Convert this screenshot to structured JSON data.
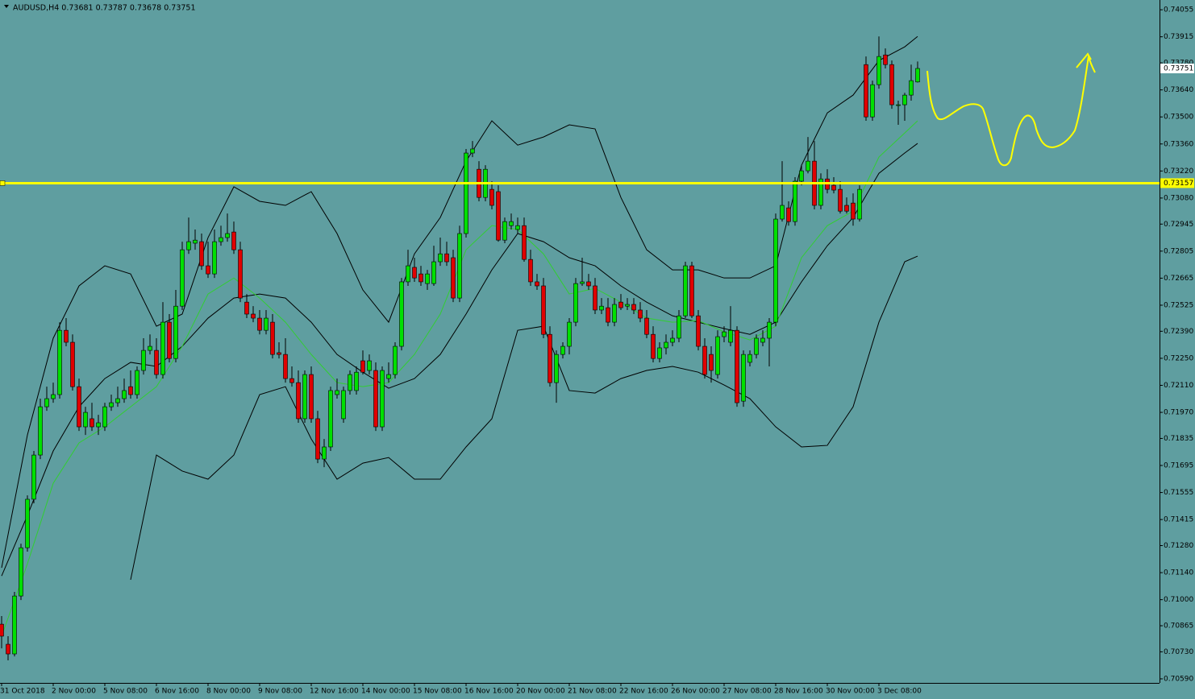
{
  "chart_data": {
    "type": "candlestick",
    "title": "AUDUSD,H4  0.73681 0.73787 0.73678 0.73751",
    "categories": [
      "31 Oct 2018",
      null,
      null,
      null,
      null,
      null,
      null,
      null,
      "2 Nov 00:00",
      null,
      null,
      null,
      null,
      null,
      null,
      null,
      "5 Nov 08:00",
      null,
      null,
      null,
      null,
      null,
      null,
      null,
      "6 Nov 16:00",
      null,
      null,
      null,
      null,
      null,
      null,
      null,
      "8 Nov 00:00",
      null,
      null,
      null,
      null,
      null,
      null,
      null,
      "9 Nov 08:00",
      null,
      null,
      null,
      null,
      null,
      null,
      null,
      "12 Nov 16:00",
      null,
      null,
      null,
      null,
      null,
      null,
      null,
      "14 Nov 00:00",
      null,
      null,
      null,
      null,
      null,
      null,
      null,
      "15 Nov 08:00",
      null,
      null,
      null,
      null,
      null,
      null,
      null,
      "16 Nov 16:00",
      null,
      null,
      null,
      null,
      null,
      null,
      null,
      "20 Nov 00:00",
      null,
      null,
      null,
      null,
      null,
      null,
      null,
      "21 Nov 08:00",
      null,
      null,
      null,
      null,
      null,
      null,
      null,
      "22 Nov 16:00",
      null,
      null,
      null,
      null,
      null,
      null,
      null,
      "26 Nov 00:00",
      null,
      null,
      null,
      null,
      null,
      null,
      null,
      "27 Nov 08:00",
      null,
      null,
      null,
      null,
      null,
      null,
      null,
      "28 Nov 16:00",
      null,
      null,
      null,
      null,
      null,
      null,
      null,
      "30 Nov 00:00",
      null,
      null,
      null,
      null,
      null,
      null,
      null,
      "3 Dec 08:00",
      null,
      null,
      null,
      null,
      null,
      null
    ],
    "open": [
      0.70873,
      0.70769,
      0.70719,
      0.71019,
      0.71269,
      0.7152,
      0.71749,
      0.71999,
      0.72041,
      0.72062,
      0.72395,
      0.72333,
      0.72103,
      0.71895,
      0.71937,
      0.71895,
      0.71895,
      0.71999,
      0.7202,
      0.72041,
      0.72103,
      0.72062,
      0.72187,
      0.72291,
      0.72291,
      0.72166,
      0.72437,
      0.72249,
      0.7252,
      0.72812,
      0.72846,
      0.72854,
      0.72729,
      0.72687,
      0.72854,
      0.72875,
      0.72904,
      0.72812,
      0.72541,
      0.72479,
      0.72458,
      0.72395,
      0.72437,
      0.72279,
      0.7227,
      0.72145,
      0.72124,
      0.71937,
      0.72166,
      0.71937,
      0.71728,
      0.71791,
      0.72062,
      0.71937,
      0.72083,
      0.72083,
      0.72237,
      0.72187,
      0.72187,
      0.71895,
      0.72145,
      0.72166,
      0.72312,
      0.72646,
      0.72721,
      0.72687,
      0.72637,
      0.72637,
      0.7275,
      0.72791,
      0.72771,
      0.72562,
      0.72896,
      0.73313,
      0.73229,
      0.73083,
      0.73125,
      0.73113,
      0.72862,
      0.72937,
      0.72917,
      0.72937,
      0.72762,
      0.72646,
      0.72625,
      0.72374,
      0.72124,
      0.7227,
      0.72312,
      0.72437,
      0.72637,
      0.72646,
      0.72625,
      0.725,
      0.72512,
      0.72437,
      0.72541,
      0.7252,
      0.72529,
      0.725,
      0.72458,
      0.72374,
      0.72249,
      0.72304,
      0.72333,
      0.72354,
      0.7247,
      0.72729,
      0.7247,
      0.72312,
      0.7227,
      0.72166,
      0.72362,
      0.72333,
      0.72395,
      0.72028,
      0.72229,
      0.7227,
      0.72333,
      0.72354,
      0.72437,
      0.72971,
      0.73029,
      0.72958,
      0.73167,
      0.73221,
      0.73271,
      0.73042,
      0.73179,
      0.73146,
      0.73125,
      0.73042,
      0.73054,
      0.72971,
      0.73771,
      0.735,
      0.73667,
      0.73821,
      0.73771,
      0.73563,
      0.73563,
      0.73613,
      0.73681
    ],
    "high": [
      0.70915,
      0.70811,
      0.7104,
      0.7129,
      0.7154,
      0.7177,
      0.72041,
      0.72103,
      0.72124,
      0.72437,
      0.72458,
      0.72374,
      0.72145,
      0.71999,
      0.7202,
      0.71957,
      0.7202,
      0.72062,
      0.72103,
      0.72145,
      0.72187,
      0.72208,
      0.72354,
      0.72374,
      0.72354,
      0.72541,
      0.72479,
      0.72604,
      0.72854,
      0.72979,
      0.72917,
      0.72896,
      0.72854,
      0.72917,
      0.72937,
      0.73,
      0.72958,
      0.72854,
      0.72583,
      0.7252,
      0.725,
      0.725,
      0.72479,
      0.72333,
      0.72354,
      0.72208,
      0.72187,
      0.72187,
      0.72208,
      0.71978,
      0.71832,
      0.72103,
      0.72145,
      0.72103,
      0.72187,
      0.72208,
      0.72291,
      0.7227,
      0.72229,
      0.72208,
      0.72229,
      0.72333,
      0.72666,
      0.72812,
      0.72771,
      0.72729,
      0.72708,
      0.72833,
      0.72875,
      0.72854,
      0.72812,
      0.72937,
      0.73334,
      0.73375,
      0.73271,
      0.7325,
      0.73167,
      0.73146,
      0.72979,
      0.73,
      0.72979,
      0.72979,
      0.72812,
      0.72687,
      0.72666,
      0.72416,
      0.72291,
      0.72333,
      0.72458,
      0.72666,
      0.72771,
      0.72687,
      0.72666,
      0.72562,
      0.72562,
      0.72562,
      0.72583,
      0.72562,
      0.72562,
      0.72541,
      0.725,
      0.72416,
      0.72333,
      0.72374,
      0.72395,
      0.725,
      0.7275,
      0.7275,
      0.725,
      0.72354,
      0.72312,
      0.72395,
      0.72416,
      0.7252,
      0.72416,
      0.72291,
      0.72291,
      0.72374,
      0.72395,
      0.72458,
      0.73,
      0.73271,
      0.73063,
      0.73188,
      0.7325,
      0.73396,
      0.73375,
      0.73208,
      0.73229,
      0.73188,
      0.73167,
      0.73083,
      0.73104,
      0.73146,
      0.73813,
      0.73688,
      0.73917,
      0.73855,
      0.73792,
      0.73584,
      0.73625,
      0.73771,
      0.73787
    ],
    "low": [
      0.70748,
      0.70686,
      0.70706,
      0.70998,
      0.71249,
      0.71499,
      0.71728,
      0.71978,
      0.7202,
      0.72041,
      0.72312,
      0.72083,
      0.71874,
      0.71853,
      0.71874,
      0.71853,
      0.71874,
      0.71978,
      0.71999,
      0.7202,
      0.72041,
      0.72041,
      0.72166,
      0.7227,
      0.72145,
      0.72145,
      0.72229,
      0.72229,
      0.725,
      0.72791,
      0.72812,
      0.72708,
      0.72666,
      0.72666,
      0.72833,
      0.72854,
      0.72791,
      0.72541,
      0.72458,
      0.72437,
      0.72374,
      0.72374,
      0.72249,
      0.72249,
      0.72124,
      0.72103,
      0.71916,
      0.71916,
      0.71916,
      0.71707,
      0.71686,
      0.7177,
      0.72041,
      0.71916,
      0.72062,
      0.72062,
      0.72166,
      0.72166,
      0.71874,
      0.71874,
      0.72124,
      0.72145,
      0.72291,
      0.72625,
      0.72646,
      0.72625,
      0.72604,
      0.72625,
      0.72729,
      0.72729,
      0.72541,
      0.72541,
      0.72875,
      0.73292,
      0.73063,
      0.73063,
      0.73021,
      0.72854,
      0.72846,
      0.72917,
      0.72896,
      0.7275,
      0.72625,
      0.72604,
      0.72354,
      0.72103,
      0.7202,
      0.72249,
      0.7227,
      0.72416,
      0.72625,
      0.72604,
      0.72479,
      0.72479,
      0.72416,
      0.72416,
      0.725,
      0.725,
      0.72479,
      0.72437,
      0.72354,
      0.72229,
      0.72229,
      0.7227,
      0.72312,
      0.72333,
      0.72458,
      0.72458,
      0.72291,
      0.72145,
      0.72124,
      0.72145,
      0.72333,
      0.72312,
      0.71999,
      0.71999,
      0.72208,
      0.72249,
      0.72312,
      0.72208,
      0.72416,
      0.72958,
      0.72937,
      0.72937,
      0.73146,
      0.73208,
      0.73021,
      0.73021,
      0.73104,
      0.73104,
      0.73,
      0.73,
      0.72937,
      0.72958,
      0.7348,
      0.7348,
      0.73646,
      0.73751,
      0.73542,
      0.73459,
      0.7348,
      0.73584,
      0.73678
    ],
    "close": [
      0.70811,
      0.70719,
      0.71019,
      0.71269,
      0.7152,
      0.71749,
      0.71999,
      0.72041,
      0.72062,
      0.72395,
      0.72333,
      0.72103,
      0.71895,
      0.7197,
      0.71895,
      0.71916,
      0.71999,
      0.7202,
      0.72041,
      0.72083,
      0.72062,
      0.72187,
      0.72291,
      0.72312,
      0.72166,
      0.72437,
      0.72249,
      0.7252,
      0.72812,
      0.72854,
      0.72862,
      0.72729,
      0.72687,
      0.72854,
      0.72875,
      0.72896,
      0.72812,
      0.72562,
      0.72479,
      0.72458,
      0.72395,
      0.72458,
      0.7227,
      0.7227,
      0.72145,
      0.72124,
      0.71937,
      0.72166,
      0.71937,
      0.71728,
      0.71791,
      0.72083,
      0.72083,
      0.72083,
      0.72166,
      0.72178,
      0.72178,
      0.72237,
      0.71895,
      0.72187,
      0.72166,
      0.72312,
      0.72646,
      0.72729,
      0.72666,
      0.72646,
      0.72687,
      0.7275,
      0.72791,
      0.7275,
      0.72562,
      0.72896,
      0.73313,
      0.73334,
      0.73083,
      0.73229,
      0.73042,
      0.72862,
      0.72958,
      0.72958,
      0.72937,
      0.72762,
      0.72646,
      0.72625,
      0.72374,
      0.72124,
      0.7227,
      0.72312,
      0.72437,
      0.72637,
      0.72646,
      0.72625,
      0.725,
      0.7252,
      0.72437,
      0.72529,
      0.72512,
      0.72529,
      0.725,
      0.72458,
      0.72374,
      0.72249,
      0.72304,
      0.72333,
      0.72354,
      0.7247,
      0.72729,
      0.7247,
      0.72312,
      0.72166,
      0.72187,
      0.72362,
      0.72387,
      0.72395,
      0.7202,
      0.7227,
      0.7227,
      0.72354,
      0.72354,
      0.72437,
      0.72971,
      0.73042,
      0.72958,
      0.73167,
      0.73221,
      0.73271,
      0.73042,
      0.73179,
      0.73125,
      0.73121,
      0.73012,
      0.73012,
      0.72971,
      0.73125,
      0.735,
      0.73667,
      0.73813,
      0.73771,
      0.73563,
      0.73563,
      0.73613,
      0.73688,
      0.73751
    ],
    "up_color": "#00e000",
    "down_color": "#e00000",
    "ylim": [
      0.70569,
      0.74093
    ],
    "yticks": [
      0.74055,
      0.73915,
      {
        "value": 0.7378,
        "label": "0.73780"
      },
      {
        "value": 0.7364,
        "label": "0.73640"
      },
      {
        "value": 0.735,
        "label": "0.73500"
      },
      {
        "value": 0.7336,
        "label": "0.73360"
      },
      {
        "value": 0.7322,
        "label": "0.73220"
      },
      {
        "value": 0.7308,
        "label": "0.73080"
      },
      0.72945,
      0.72805,
      0.72665,
      0.72525,
      {
        "value": 0.7239,
        "label": "0.72390"
      },
      {
        "value": 0.7225,
        "label": "0.72250"
      },
      {
        "value": 0.7211,
        "label": "0.72110"
      },
      {
        "value": 0.7197,
        "label": "0.71970"
      },
      0.71835,
      0.71695,
      0.71555,
      0.71415,
      {
        "value": 0.7128,
        "label": "0.71280"
      },
      {
        "value": 0.7114,
        "label": "0.71140"
      },
      {
        "value": 0.71,
        "label": "0.71000"
      },
      0.70865,
      {
        "value": 0.7073,
        "label": "0.70730"
      },
      {
        "value": 0.7059,
        "label": "0.70590"
      }
    ],
    "indicators": {
      "x": [
        0,
        4,
        8,
        12,
        16,
        20,
        24,
        28,
        32,
        36,
        40,
        44,
        48,
        52,
        56,
        60,
        64,
        68,
        72,
        76,
        80,
        84,
        88,
        92,
        96,
        100,
        104,
        108,
        112,
        116,
        120,
        124,
        128,
        132,
        136,
        140,
        142
      ],
      "series": [
        {
          "color": "#000000",
          "values": [
            0.71165,
            0.71853,
            0.72354,
            0.72625,
            0.72729,
            0.72687,
            0.72416,
            0.72479,
            0.72875,
            0.73138,
            0.73063,
            0.73042,
            0.73113,
            0.72896,
            0.72604,
            0.72437,
            0.72791,
            0.72979,
            0.73271,
            0.7348,
            0.73354,
            0.73396,
            0.73459,
            0.73438,
            0.73083,
            0.72812,
            0.72708,
            0.72708,
            0.72666,
            0.72666,
            0.72729,
            0.7325,
            0.73521,
            0.73613,
            0.73792,
            0.73863,
            0.73917
          ]
        },
        {
          "color": "#000000",
          "values": [
            0.71123,
            0.71436,
            0.7177,
            0.71999,
            0.72145,
            0.72229,
            0.72208,
            0.72312,
            0.72458,
            0.72562,
            0.72583,
            0.72562,
            0.72437,
            0.7227,
            0.72178,
            0.72095,
            0.72145,
            0.7227,
            0.72479,
            0.72708,
            0.72896,
            0.72854,
            0.72771,
            0.72729,
            0.72625,
            0.72541,
            0.7247,
            0.72437,
            0.72404,
            0.72374,
            0.72437,
            0.72646,
            0.72833,
            0.72979,
            0.73208,
            0.73313,
            0.73363
          ]
        },
        {
          "color": "#000000",
          "values": [
            null,
            null,
            null,
            null,
            null,
            0.71103,
            0.71749,
            0.71666,
            0.71624,
            0.71749,
            0.72062,
            0.72103,
            0.71832,
            0.71624,
            0.71707,
            0.71736,
            0.71624,
            0.71624,
            0.71791,
            0.71937,
            0.72395,
            0.72416,
            0.72083,
            0.7207,
            0.72145,
            0.72187,
            0.72208,
            0.72178,
            0.72112,
            0.72041,
            0.71895,
            0.71791,
            0.71799,
            0.71999,
            0.72437,
            0.7275,
            0.72779
          ]
        },
        {
          "color": "#32cd32",
          "values": [
            0.70811,
            0.71186,
            0.71603,
            0.71812,
            0.71895,
            0.71999,
            0.72103,
            0.72312,
            0.72583,
            0.72666,
            0.72562,
            0.72437,
            0.7227,
            0.72124,
            0.72103,
            0.72124,
            0.7227,
            0.72479,
            0.72812,
            0.72937,
            0.72917,
            0.72791,
            0.72583,
            0.72612,
            0.72541,
            0.72458,
            0.72437,
            0.72445,
            0.72387,
            0.72345,
            0.72416,
            0.72771,
            0.72937,
            0.73012,
            0.73292,
            0.73417,
            0.7348
          ]
        }
      ]
    },
    "hline": {
      "value": 0.73157,
      "color": "#ffff00"
    },
    "current_price": 0.73751
  }
}
